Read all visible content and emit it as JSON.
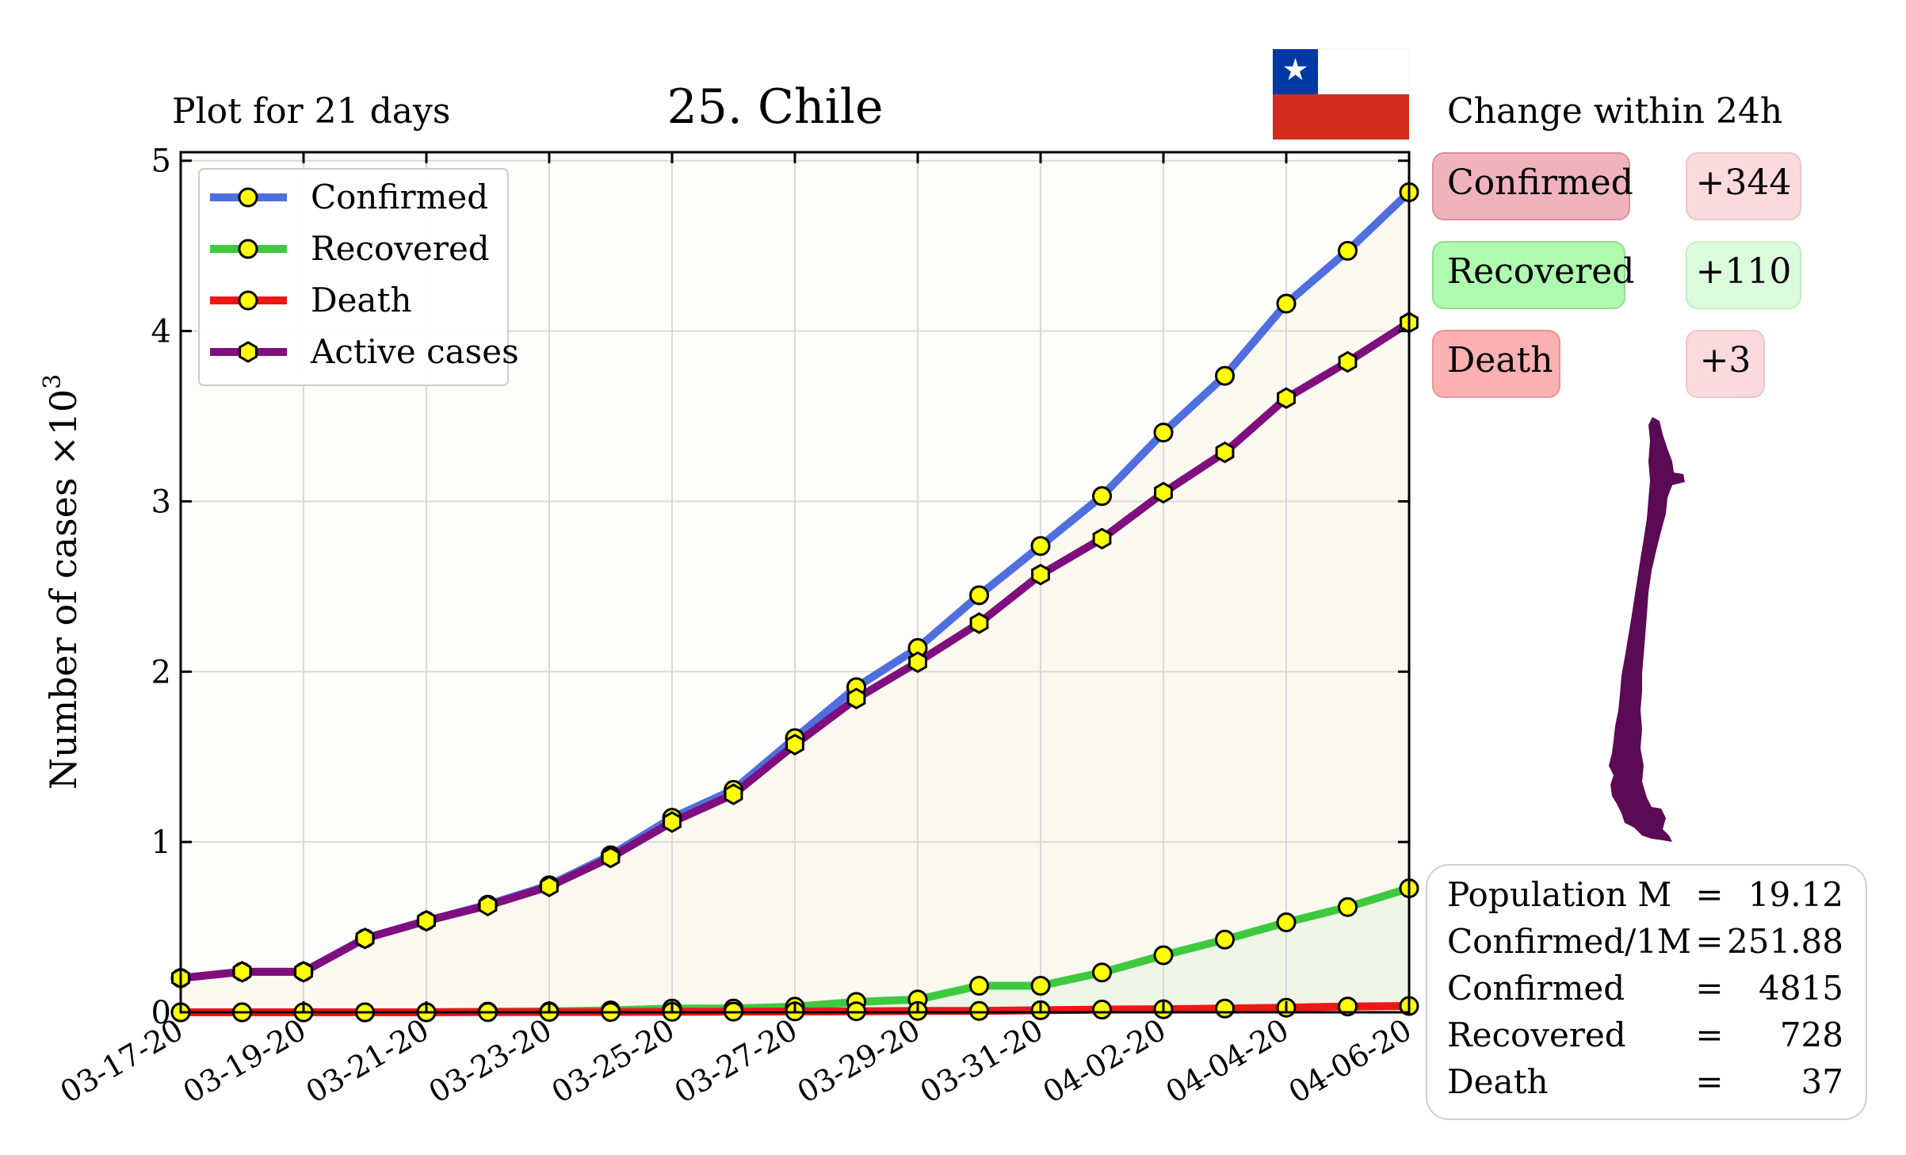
{
  "header": {
    "subtitle": "Plot for 21 days",
    "title": "25. Chile",
    "change_title": "Change within 24h"
  },
  "flag": {
    "country": "Chile",
    "colors": {
      "blue": "#0039a6",
      "white": "#ffffff",
      "red": "#d52b1e"
    }
  },
  "map_icon": "chile-map-icon",
  "colors": {
    "confirmed": "#4f6fde",
    "recovered": "#3ec93e",
    "death": "#f01616",
    "active": "#7f0f7f",
    "marker": "#ffff00",
    "map": "#5b0a55"
  },
  "change": [
    {
      "label": "Confirmed",
      "value": "+344"
    },
    {
      "label": "Recovered",
      "value": "+110"
    },
    {
      "label": "Death",
      "value": "+3"
    }
  ],
  "stats": [
    {
      "label": "Population M",
      "eq": "=",
      "value": "19.12"
    },
    {
      "label": "Confirmed/1M",
      "eq": "=",
      "value": "251.88"
    },
    {
      "label": "Confirmed",
      "eq": "=",
      "value": "4815"
    },
    {
      "label": "Recovered",
      "eq": "=",
      "value": "728"
    },
    {
      "label": "Death",
      "eq": "=",
      "value": "37"
    }
  ],
  "chart_data": {
    "type": "line",
    "title": "25. Chile",
    "ylabel": "Number of cases ×10³",
    "ylabel_text": "Number of cases ×10",
    "ylabel_exp": "3",
    "x": [
      "03-17-20",
      "03-18-20",
      "03-19-20",
      "03-20-20",
      "03-21-20",
      "03-22-20",
      "03-23-20",
      "03-24-20",
      "03-25-20",
      "03-26-20",
      "03-27-20",
      "03-28-20",
      "03-29-20",
      "03-30-20",
      "03-31-20",
      "04-01-20",
      "04-02-20",
      "04-03-20",
      "04-04-20",
      "04-05-20",
      "04-06-20"
    ],
    "xticks": [
      "03-17-20",
      "03-19-20",
      "03-21-20",
      "03-23-20",
      "03-25-20",
      "03-27-20",
      "03-29-20",
      "03-31-20",
      "04-02-20",
      "04-04-20",
      "04-06-20"
    ],
    "yticks": [
      0,
      1,
      2,
      3,
      4,
      5
    ],
    "ylim": [
      0,
      5.05
    ],
    "grid": true,
    "legend": "top-left",
    "series": [
      {
        "name": "Confirmed",
        "values": [
          0.201,
          0.238,
          0.238,
          0.434,
          0.537,
          0.632,
          0.746,
          0.922,
          1.142,
          1.306,
          1.61,
          1.909,
          2.139,
          2.449,
          2.738,
          3.031,
          3.404,
          3.737,
          4.161,
          4.471,
          4.815
        ]
      },
      {
        "name": "Recovered",
        "values": [
          0.0,
          0.0,
          0.0,
          0.0,
          0.0,
          0.004,
          0.005,
          0.011,
          0.022,
          0.022,
          0.033,
          0.061,
          0.075,
          0.156,
          0.156,
          0.234,
          0.335,
          0.427,
          0.528,
          0.618,
          0.728
        ]
      },
      {
        "name": "Death",
        "values": [
          0.0,
          0.0,
          0.0,
          0.0,
          0.0,
          0.001,
          0.002,
          0.002,
          0.003,
          0.004,
          0.005,
          0.006,
          0.008,
          0.008,
          0.012,
          0.016,
          0.018,
          0.022,
          0.027,
          0.034,
          0.037
        ]
      },
      {
        "name": "Active cases",
        "values": [
          0.201,
          0.238,
          0.238,
          0.434,
          0.537,
          0.627,
          0.739,
          0.909,
          1.117,
          1.28,
          1.572,
          1.842,
          2.056,
          2.285,
          2.57,
          2.781,
          3.051,
          3.288,
          3.606,
          3.819,
          4.05
        ]
      }
    ]
  }
}
